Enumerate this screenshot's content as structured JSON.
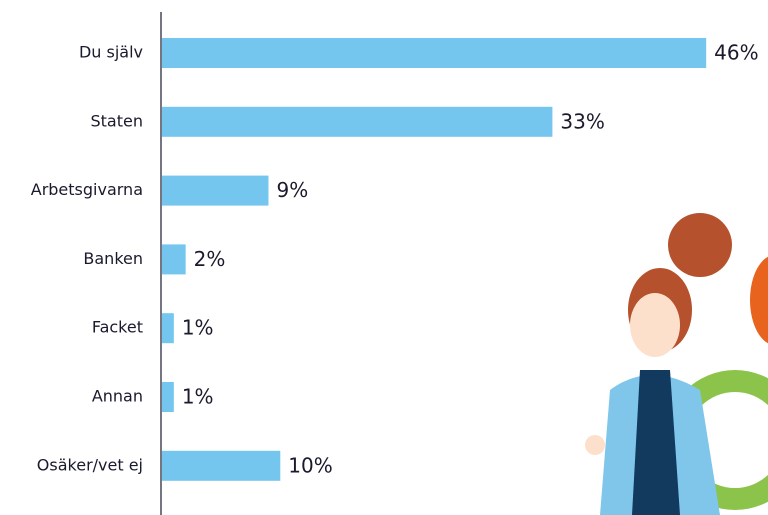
{
  "chart_data": {
    "type": "bar",
    "orientation": "horizontal",
    "categories": [
      "Du själv",
      "Staten",
      "Arbetsgivarna",
      "Banken",
      "Facket",
      "Annan",
      "Osäker/vet ej"
    ],
    "values": [
      46,
      33,
      9,
      2,
      1,
      1,
      10
    ],
    "value_labels": [
      "46%",
      "33%",
      "9%",
      "2%",
      "1%",
      "1%",
      "10%"
    ],
    "color": "#74c6ee"
  }
}
